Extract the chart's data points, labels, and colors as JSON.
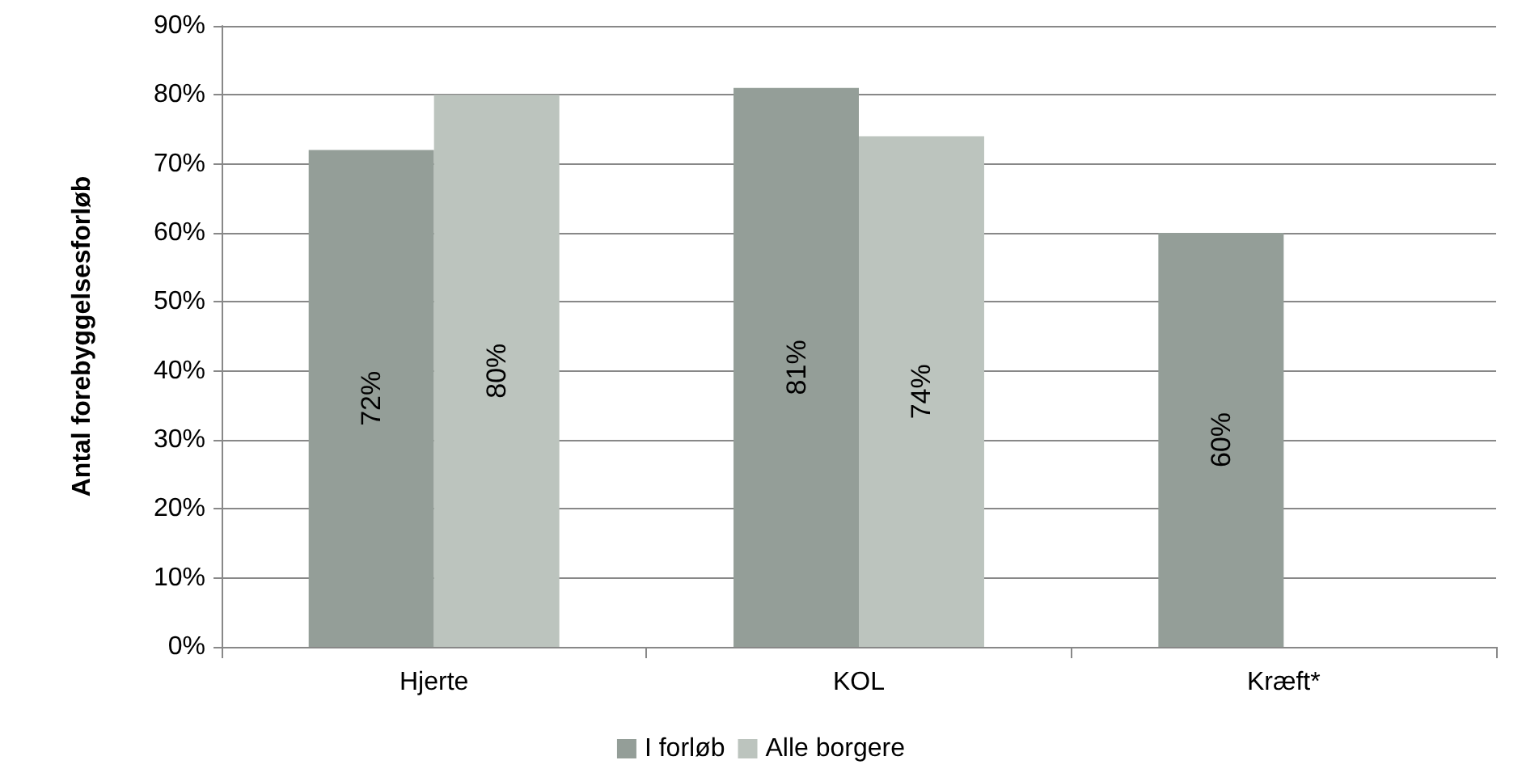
{
  "chart_data": {
    "type": "bar",
    "ylabel": "Antal forebyggelsesforløb",
    "categories": [
      "Hjerte",
      "KOL",
      "Kræft*"
    ],
    "series": [
      {
        "name": "I forløb",
        "color": "#949e98",
        "values": [
          72,
          81,
          60
        ],
        "value_labels": [
          "72%",
          "81%",
          "60%"
        ]
      },
      {
        "name": "Alle borgere",
        "color": "#bcc4be",
        "values": [
          80,
          74,
          null
        ],
        "value_labels": [
          "80%",
          "74%",
          null
        ]
      }
    ],
    "ylim": [
      0,
      90
    ],
    "yticks": [
      {
        "value": 0,
        "label": "0%"
      },
      {
        "value": 10,
        "label": "10%"
      },
      {
        "value": 20,
        "label": "20%"
      },
      {
        "value": 30,
        "label": "30%"
      },
      {
        "value": 40,
        "label": "40%"
      },
      {
        "value": 50,
        "label": "50%"
      },
      {
        "value": 60,
        "label": "60%"
      },
      {
        "value": 70,
        "label": "70%"
      },
      {
        "value": 80,
        "label": "80%"
      },
      {
        "value": 90,
        "label": "90%"
      }
    ],
    "grid": "y",
    "legend": "bottom"
  }
}
